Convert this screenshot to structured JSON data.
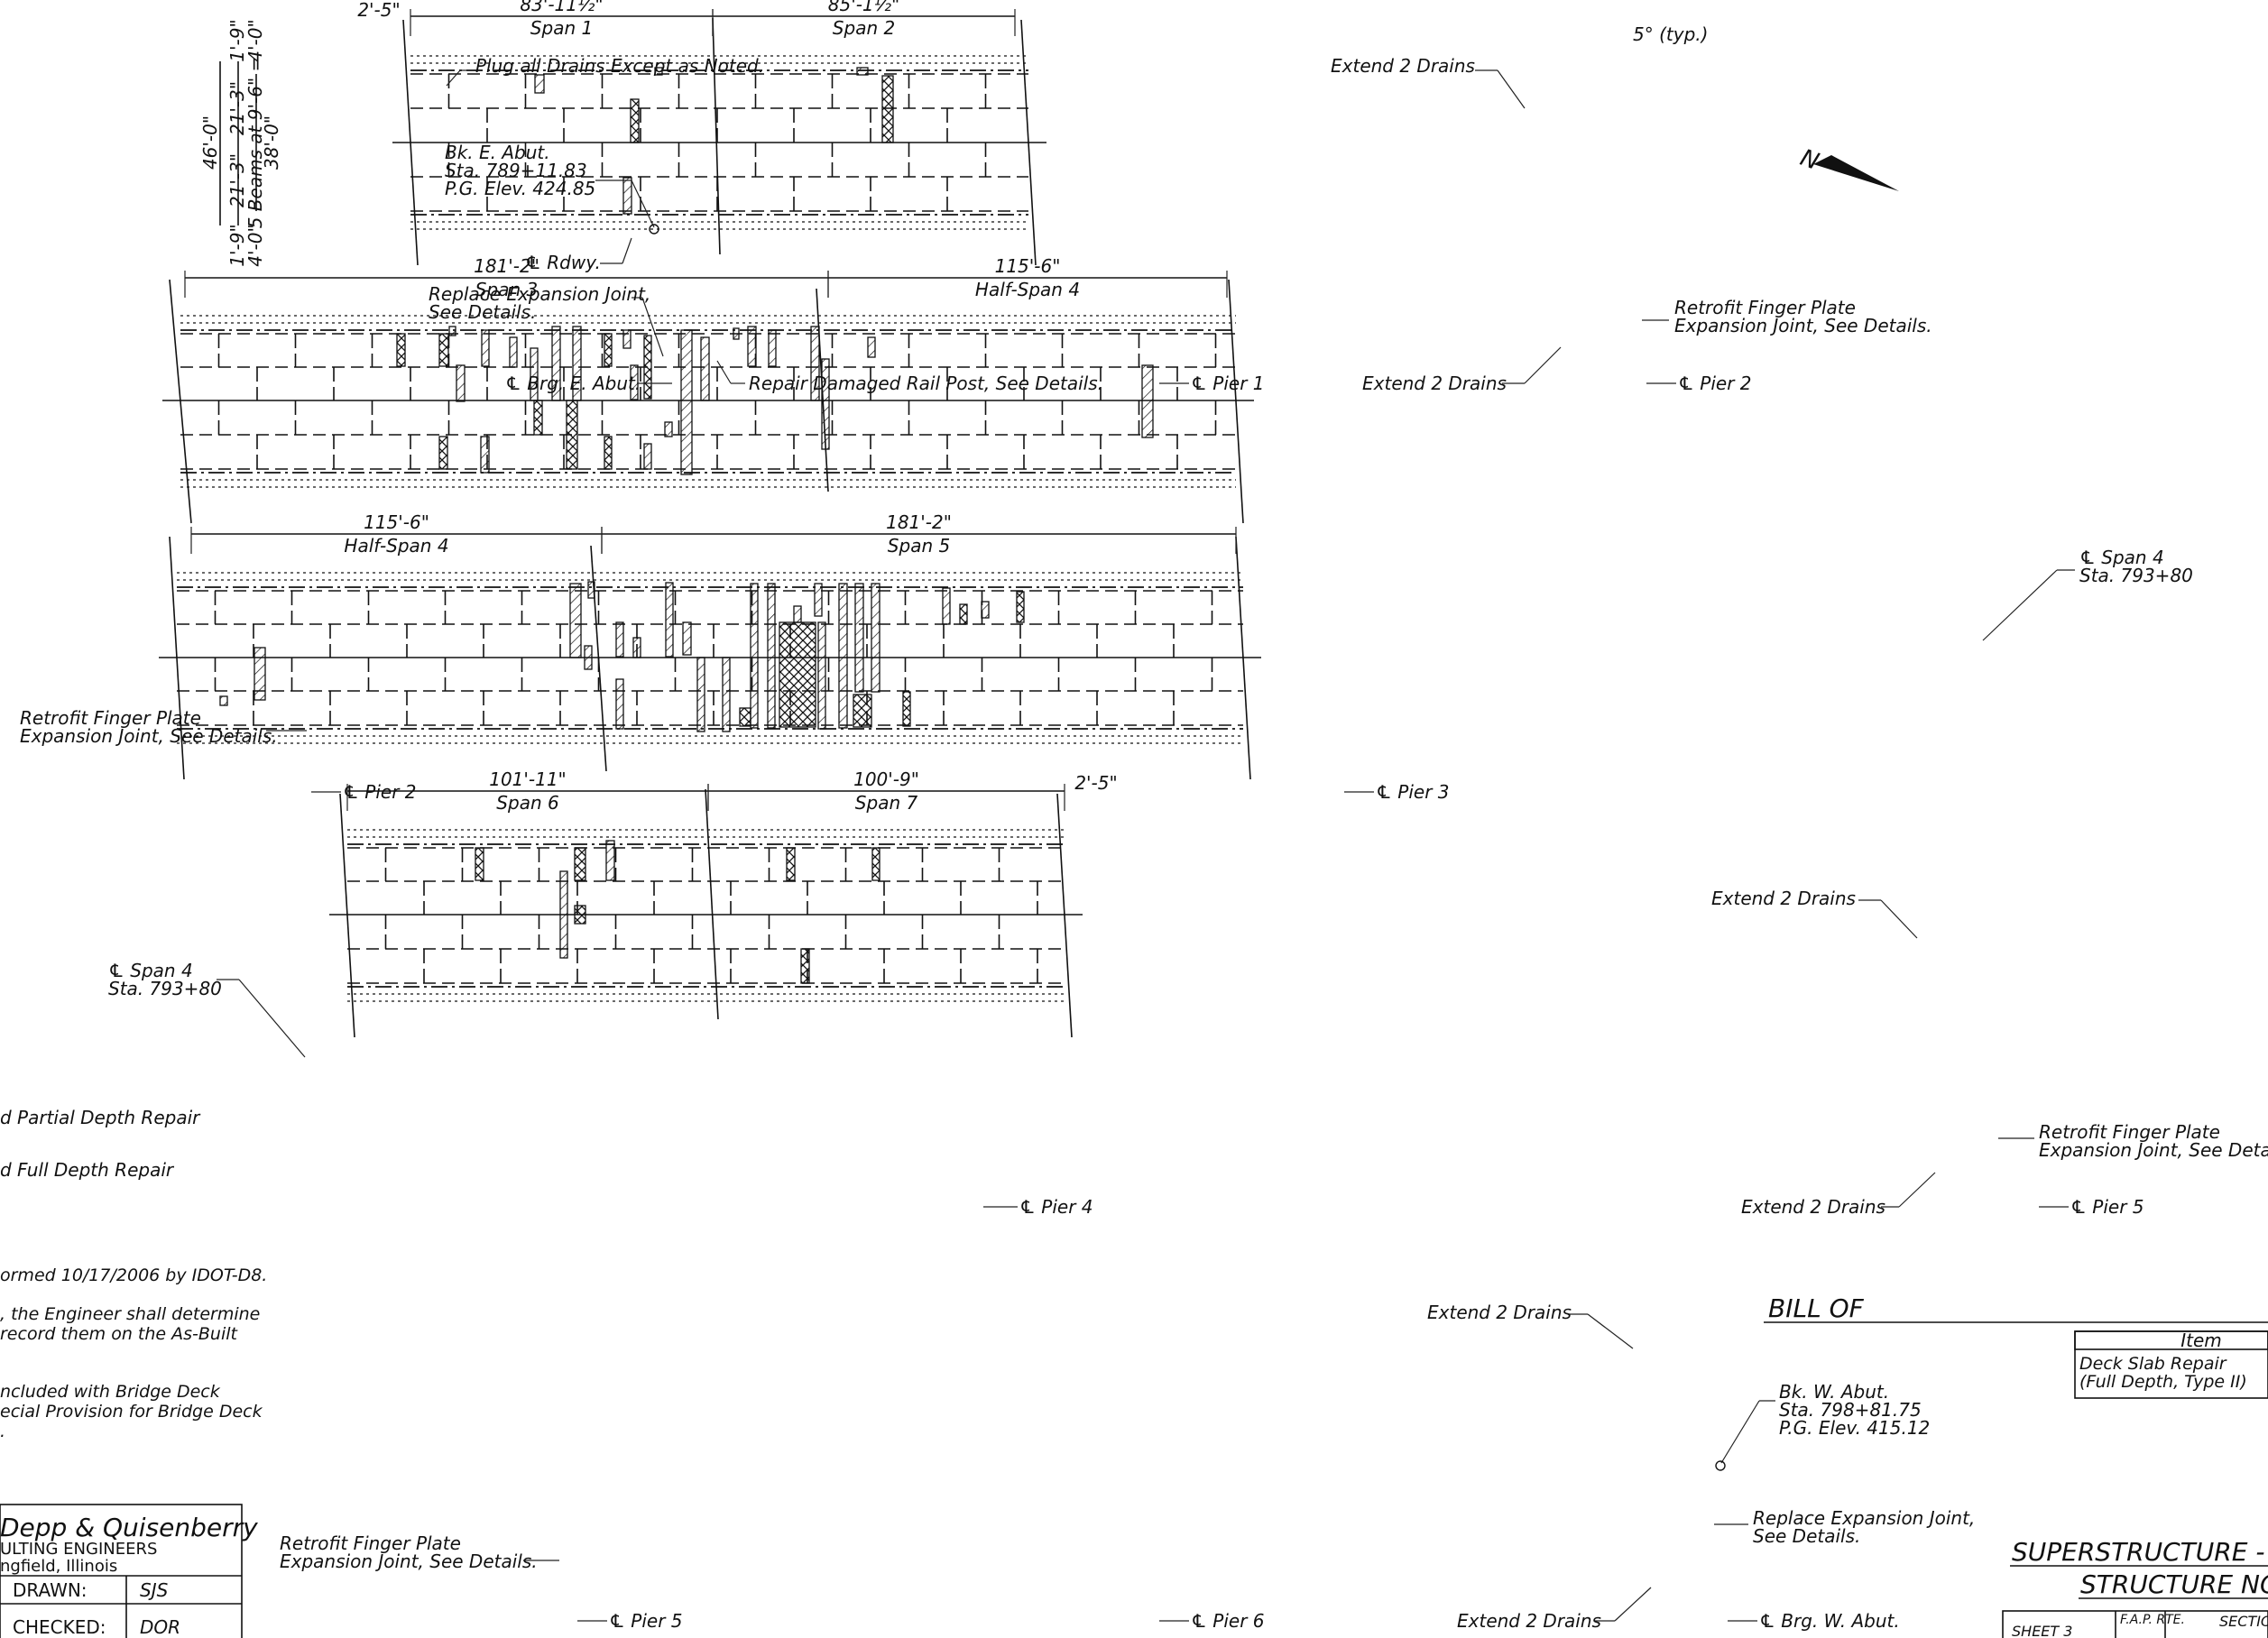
{
  "views": [
    {
      "id": "v1",
      "x": 0,
      "y": 0,
      "dims": [
        {
          "value": "2'-5\"",
          "label": ""
        },
        {
          "value": "83'-11½\"",
          "label": "Span 1"
        },
        {
          "value": "85'-1½\"",
          "label": "Span 2"
        }
      ],
      "skew_label": "5° (typ.)"
    },
    {
      "id": "v2",
      "dims": [
        {
          "value": "181'-2\"",
          "label": "Span 3"
        },
        {
          "value": "115'-6\"",
          "label": "Half-Span 4"
        }
      ]
    },
    {
      "id": "v3",
      "dims": [
        {
          "value": "115'-6\"",
          "label": "Half-Span 4"
        },
        {
          "value": "181'-2\"",
          "label": "Span 5"
        }
      ]
    },
    {
      "id": "v4",
      "dims": [
        {
          "value": "101'-11\"",
          "label": "Span 6"
        },
        {
          "value": "100'-9\"",
          "label": "Span 7"
        },
        {
          "value": "2'-5\"",
          "label": ""
        }
      ]
    }
  ],
  "section_dims": {
    "top_overhang": "1'-9\"",
    "top_overhang2": "4'-0\"",
    "half_width_top": "21'-3\"",
    "half_width_bottom": "21'-3\"",
    "total_width": "46'-0\"",
    "beams": "5 Beams at 9'-6\" =",
    "beams_total": "38'-0\"",
    "bottom_overhang": "1'-9\"",
    "bottom_overhang2": "4'-0\""
  },
  "callouts": {
    "plug_drains": "Plug all Drains Except as Noted.",
    "extend_2_drains": "Extend 2 Drains",
    "bk_e_abut": [
      "Bk. E. Abut.",
      "Sta. 789+11.83",
      "P.G. Elev. 424.85"
    ],
    "cl_rdwy": "℄ Rdwy.",
    "replace_exp_joint": [
      "Replace Expansion Joint,",
      "See Details."
    ],
    "cl_brg_e_abut": "℄ Brg. E. Abut.",
    "repair_rail_post": "Repair Damaged Rail Post, See Details.",
    "cl_pier_1": "℄ Pier 1",
    "cl_pier_2": "℄ Pier 2",
    "cl_pier_3": "℄ Pier 3",
    "cl_pier_4": "℄ Pier 4",
    "cl_pier_5": "℄ Pier 5",
    "cl_pier_6": "℄ Pier 6",
    "retrofit_finger": [
      "Retrofit Finger Plate",
      "Expansion Joint, See Details."
    ],
    "cl_span4": [
      "℄ Span 4",
      "Sta. 793+80"
    ],
    "bk_w_abut": [
      "Bk. W. Abut.",
      "Sta. 798+81.75",
      "P.G. Elev. 415.12"
    ],
    "replace_exp_joint_w": [
      "Replace Expansion Joint,",
      "See Details."
    ],
    "cl_brg_w_abut": "℄ Brg. W. Abut.",
    "north": "N"
  },
  "legend_notes": [
    "d Partial Depth Repair",
    "d Full Depth Repair"
  ],
  "notes": [
    "ormed 10/17/2006 by IDOT-D8.",
    ", the Engineer shall determine",
    "record them on the As-Built",
    "ncluded with Bridge Deck",
    "ecial Provision for Bridge Deck",
    "."
  ],
  "title_block": {
    "firm": "Depp & Quisenberry",
    "firm_sub": "ULTING ENGINEERS",
    "city": "ngfield, Illinois",
    "drawn_label": "DRAWN:",
    "drawn_value": "SJS",
    "checked_label": "CHECKED:",
    "checked_value": "DOR"
  },
  "bill": {
    "title": "BILL OF",
    "col_item": "Item",
    "row1": [
      "Deck Slab Repair",
      "(Full Depth, Type II)"
    ]
  },
  "sheet_title": {
    "line1": "SUPERSTRUCTURE -",
    "line2": "STRUCTURE NO.",
    "fap": "F.A.P. RTE.",
    "section": "SECTIO",
    "sheet": "SHEET 3"
  }
}
